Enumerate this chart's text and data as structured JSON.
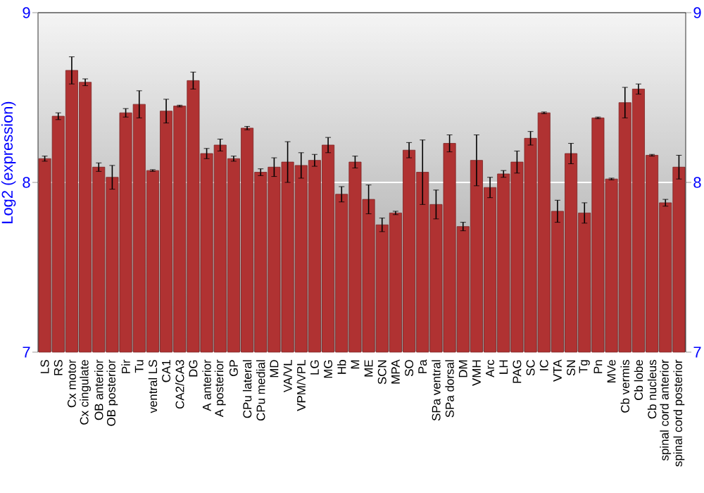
{
  "chart_data": {
    "type": "bar",
    "ylabel": "Log2 (expression)",
    "categories": [
      "LS",
      "RS",
      "Cx motor",
      "Cx cingulate",
      "OB anterior",
      "OB posterior",
      "Pir",
      "Tu",
      "ventral LS",
      "CA1",
      "CA2/CA3",
      "DG",
      "A anterior",
      "A posterior",
      "GP",
      "CPu lateral",
      "CPu medial",
      "MD",
      "VA/VL",
      "VPM/VPL",
      "LG",
      "MG",
      "Hb",
      "M",
      "ME",
      "SCN",
      "MPA",
      "SO",
      "Pa",
      "SPa ventral",
      "SPa dorsal",
      "DM",
      "VMH",
      "Arc",
      "LH",
      "PAG",
      "SC",
      "IC",
      "VTA",
      "SN",
      "Tg",
      "Pn",
      "MVe",
      "Cb vermis",
      "Cb lobe",
      "Cb nucleus",
      "spinal cord anterior",
      "spinal cord posterior"
    ],
    "values": [
      8.14,
      8.39,
      8.66,
      8.59,
      8.09,
      8.03,
      8.41,
      8.46,
      8.07,
      8.42,
      8.45,
      8.6,
      8.17,
      8.22,
      8.14,
      8.32,
      8.06,
      8.09,
      8.12,
      8.1,
      8.13,
      8.22,
      7.93,
      8.12,
      7.9,
      7.75,
      7.82,
      8.19,
      8.06,
      7.87,
      8.23,
      7.74,
      8.13,
      7.97,
      8.05,
      8.12,
      8.26,
      8.41,
      7.83,
      8.17,
      7.82,
      8.38,
      8.02,
      8.47,
      8.55,
      8.16,
      7.88,
      8.09
    ],
    "errors": [
      0.015,
      0.02,
      0.08,
      0.02,
      0.025,
      0.07,
      0.025,
      0.08,
      0.005,
      0.07,
      0.005,
      0.05,
      0.03,
      0.035,
      0.015,
      0.01,
      0.02,
      0.055,
      0.12,
      0.075,
      0.035,
      0.045,
      0.045,
      0.035,
      0.085,
      0.04,
      0.01,
      0.045,
      0.19,
      0.085,
      0.05,
      0.025,
      0.15,
      0.06,
      0.02,
      0.065,
      0.04,
      0.005,
      0.065,
      0.06,
      0.06,
      0.005,
      0.005,
      0.09,
      0.03,
      0.005,
      0.02,
      0.07
    ],
    "color": "#b03232",
    "ylim": [
      7,
      9
    ],
    "yticks": [
      7,
      8,
      9
    ],
    "y2lim": [
      7,
      9
    ],
    "y2ticks": [
      7,
      8,
      9
    ],
    "grid": "y"
  }
}
